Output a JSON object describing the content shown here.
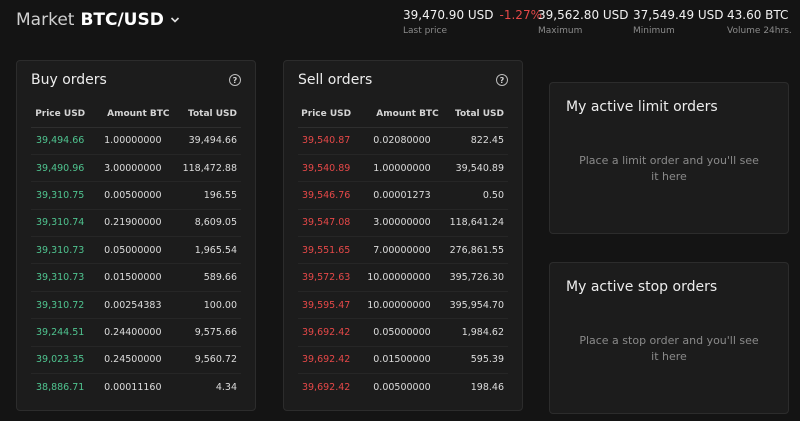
{
  "header": {
    "market_label": "Market",
    "pair": "BTC/USD",
    "stats": [
      {
        "value": "39,470.90 USD",
        "change": "-1.27%",
        "label": "Last price"
      },
      {
        "value": "39,562.80 USD",
        "label": "Maximum"
      },
      {
        "value": "37,549.49 USD",
        "label": "Minimum"
      },
      {
        "value": "43.60 BTC",
        "label": "Volume 24hrs."
      }
    ]
  },
  "buy_orders": {
    "title": "Buy orders",
    "columns": [
      "Price USD",
      "Amount BTC",
      "Total USD"
    ],
    "rows": [
      [
        "39,494.66",
        "1.00000000",
        "39,494.66"
      ],
      [
        "39,490.96",
        "3.00000000",
        "118,472.88"
      ],
      [
        "39,310.75",
        "0.00500000",
        "196.55"
      ],
      [
        "39,310.74",
        "0.21900000",
        "8,609.05"
      ],
      [
        "39,310.73",
        "0.05000000",
        "1,965.54"
      ],
      [
        "39,310.73",
        "0.01500000",
        "589.66"
      ],
      [
        "39,310.72",
        "0.00254383",
        "100.00"
      ],
      [
        "39,244.51",
        "0.24400000",
        "9,575.66"
      ],
      [
        "39,023.35",
        "0.24500000",
        "9,560.72"
      ],
      [
        "38,886.71",
        "0.00011160",
        "4.34"
      ]
    ]
  },
  "sell_orders": {
    "title": "Sell orders",
    "columns": [
      "Price USD",
      "Amount BTC",
      "Total USD"
    ],
    "rows": [
      [
        "39,540.87",
        "0.02080000",
        "822.45"
      ],
      [
        "39,540.89",
        "1.00000000",
        "39,540.89"
      ],
      [
        "39,546.76",
        "0.00001273",
        "0.50"
      ],
      [
        "39,547.08",
        "3.00000000",
        "118,641.24"
      ],
      [
        "39,551.65",
        "7.00000000",
        "276,861.55"
      ],
      [
        "39,572.63",
        "10.00000000",
        "395,726.30"
      ],
      [
        "39,595.47",
        "10.00000000",
        "395,954.70"
      ],
      [
        "39,692.42",
        "0.05000000",
        "1,984.62"
      ],
      [
        "39,692.42",
        "0.01500000",
        "595.39"
      ],
      [
        "39,692.42",
        "0.00500000",
        "198.46"
      ]
    ]
  },
  "limit_orders": {
    "title": "My active limit orders",
    "placeholder": "Place a limit order and you'll see it here"
  },
  "stop_orders": {
    "title": "My active stop orders",
    "placeholder": "Place a stop order and you'll see it here"
  },
  "colors": {
    "buy": "#4fc38f",
    "sell": "#e54848",
    "background": "#141414",
    "panel": "#1c1c1c"
  },
  "icons": [
    "chevron-down-icon",
    "help-icon"
  ]
}
